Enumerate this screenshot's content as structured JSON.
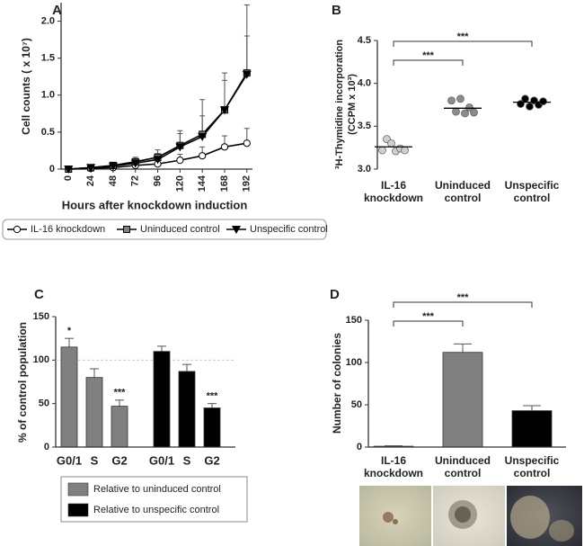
{
  "chart_data": [
    {
      "type": "line",
      "title": "A",
      "x": [
        0,
        24,
        48,
        72,
        96,
        120,
        144,
        168,
        192
      ],
      "xlim": [
        -8,
        198
      ],
      "xticks": [
        0,
        24,
        48,
        72,
        96,
        120,
        144,
        168,
        192
      ],
      "ylim": [
        0,
        2.25
      ],
      "yticks": [
        0,
        0.5,
        {
          "value": 1,
          "label": "1.0"
        },
        1.5,
        {
          "value": 2,
          "label": "2.0"
        }
      ],
      "ylabel": "Cell counts ( x 10⁷)",
      "xlabel": "Hours after knockdown induction",
      "legend": "bottom",
      "series": [
        {
          "name": "IL-16 knockdown",
          "color": "#ffffff",
          "marker": "circle",
          "values": [
            0,
            0.01,
            0.02,
            0.05,
            0.07,
            0.12,
            0.18,
            0.3,
            0.35
          ],
          "errors": [
            0,
            0.01,
            0.02,
            0.04,
            0.06,
            0.08,
            0.12,
            0.15,
            0.2
          ]
        },
        {
          "name": "Uninduced control",
          "color": "#808080",
          "marker": "square",
          "values": [
            0,
            0.02,
            0.05,
            0.1,
            0.16,
            0.32,
            0.47,
            0.8,
            1.3
          ],
          "errors": [
            0,
            0.02,
            0.03,
            0.06,
            0.1,
            0.2,
            0.25,
            0.5,
            0.92
          ]
        },
        {
          "name": "Unspecific control",
          "color": "#000000",
          "marker": "triangle-down",
          "values": [
            0,
            0.02,
            0.04,
            0.08,
            0.13,
            0.3,
            0.44,
            0.8,
            1.28
          ],
          "errors": [
            0,
            0.02,
            0.03,
            0.05,
            0.08,
            0.18,
            0.5,
            0.4,
            0.52
          ]
        }
      ]
    },
    {
      "type": "strip",
      "title": "B",
      "categories": [
        "IL-16 knockdown",
        "Uninduced control",
        "Unspecific control"
      ],
      "ylim": [
        3.0,
        4.5
      ],
      "yticks": [
        {
          "value": 3,
          "label": "3.0"
        },
        3.5,
        {
          "value": 4,
          "label": "4.0"
        },
        4.5
      ],
      "ylabel": [
        "³H-Thymidine incorporation",
        "(CCPM x 10³)"
      ],
      "groups": [
        {
          "color": "#d0d0d0",
          "values": [
            3.22,
            3.35,
            3.3,
            3.21,
            3.24,
            3.22
          ],
          "mean": 3.26
        },
        {
          "color": "#8c8c8c",
          "values": [
            3.8,
            3.67,
            3.82,
            3.65,
            3.72,
            3.66
          ],
          "mean": 3.71
        },
        {
          "color": "#000000",
          "values": [
            3.76,
            3.82,
            3.73,
            3.8,
            3.75,
            3.79
          ],
          "mean": 3.78
        }
      ],
      "annotations": [
        "***",
        "***"
      ]
    },
    {
      "type": "grouped-bar",
      "title": "C",
      "categories": [
        "G0/1",
        "S",
        "G2"
      ],
      "ylim": [
        0,
        150
      ],
      "yticks": [
        0,
        50,
        100,
        150
      ],
      "reference_line": 100,
      "ylabel": "% of control population",
      "legend": "bottom",
      "series": [
        {
          "name": "Relative to uninduced control",
          "color": "#808080",
          "values": [
            115,
            80,
            47
          ],
          "errors": [
            10,
            10,
            7
          ],
          "significance": [
            "*",
            null,
            "***"
          ]
        },
        {
          "name": "Relative to unspecific control",
          "color": "#000000",
          "values": [
            110,
            87,
            45
          ],
          "errors": [
            6,
            8,
            5
          ],
          "significance": [
            null,
            null,
            "***"
          ]
        }
      ]
    },
    {
      "type": "bar",
      "title": "D",
      "categories": [
        "IL-16 knockdown",
        "Uninduced control",
        "Unspecific control"
      ],
      "ylim": [
        0,
        150
      ],
      "yticks": [
        0,
        50,
        100,
        150
      ],
      "ylabel": "Number of colonies",
      "values": [
        1,
        112,
        43
      ],
      "errors": [
        0.5,
        10,
        6
      ],
      "colors": [
        "#ffffff",
        "#808080",
        "#000000"
      ],
      "annotations": [
        "***",
        "***"
      ]
    }
  ]
}
